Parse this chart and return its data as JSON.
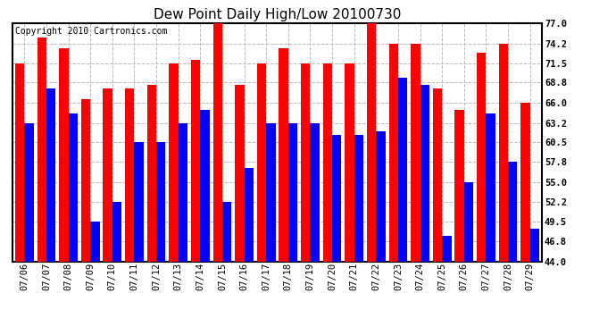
{
  "title": "Dew Point Daily High/Low 20100730",
  "copyright": "Copyright 2010 Cartronics.com",
  "dates": [
    "07/06",
    "07/07",
    "07/08",
    "07/09",
    "07/10",
    "07/11",
    "07/12",
    "07/13",
    "07/14",
    "07/15",
    "07/16",
    "07/17",
    "07/18",
    "07/19",
    "07/20",
    "07/21",
    "07/22",
    "07/23",
    "07/24",
    "07/25",
    "07/26",
    "07/27",
    "07/28",
    "07/29"
  ],
  "highs": [
    71.5,
    75.0,
    73.5,
    66.5,
    68.0,
    68.0,
    68.5,
    71.5,
    72.0,
    77.0,
    68.5,
    71.5,
    73.5,
    71.5,
    71.5,
    71.5,
    77.0,
    74.2,
    74.2,
    68.0,
    65.0,
    73.0,
    74.2,
    66.0
  ],
  "lows": [
    63.2,
    68.0,
    64.5,
    49.5,
    52.2,
    60.5,
    60.5,
    63.2,
    65.0,
    52.2,
    57.0,
    63.2,
    63.2,
    63.2,
    61.5,
    61.5,
    62.0,
    69.5,
    68.5,
    47.5,
    55.0,
    64.5,
    57.8,
    48.5
  ],
  "high_color": "#ff0000",
  "low_color": "#0000ff",
  "bg_color": "#ffffff",
  "plot_bg_color": "#ffffff",
  "grid_color": "#bbbbbb",
  "ylim_min": 44.0,
  "ylim_max": 77.0,
  "yticks": [
    44.0,
    46.8,
    49.5,
    52.2,
    55.0,
    57.8,
    60.5,
    63.2,
    66.0,
    68.8,
    71.5,
    74.2,
    77.0
  ],
  "bar_width": 0.42,
  "title_fontsize": 11,
  "tick_fontsize": 7.5,
  "copyright_fontsize": 7
}
